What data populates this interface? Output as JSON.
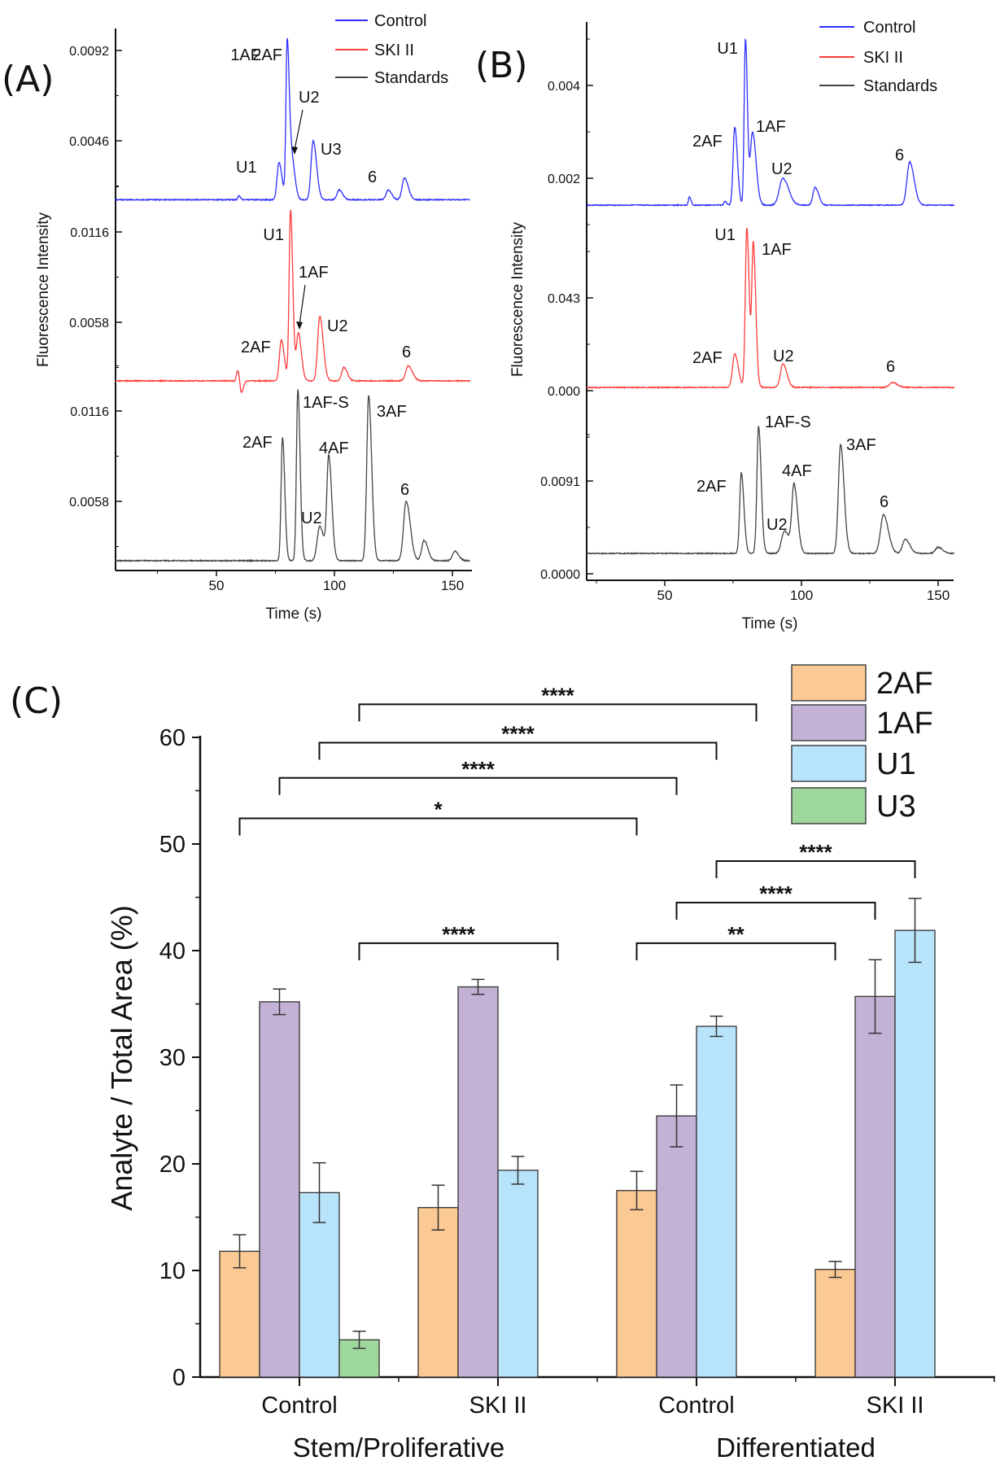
{
  "chart_data": [
    {
      "type": "line",
      "panel_label": "(A)",
      "xlabel": "Time (s)",
      "ylabel": "Fluorescence Intensity",
      "xlim": [
        7,
        157.5
      ],
      "xticks": [
        50,
        100,
        150
      ],
      "legend": {
        "placement": "top-right",
        "entries": [
          "Control",
          "SKI II",
          "Standards"
        ]
      },
      "traces": [
        {
          "name": "Control",
          "color": "#2e2eff",
          "yticks": [
            "0.0046",
            "0.0092"
          ],
          "baseline": 0.0016,
          "peaks": [
            {
              "t": 59.5,
              "h": 0.0018,
              "w": 0.4
            },
            {
              "t": 76.5,
              "h": 0.0035,
              "w": 0.8,
              "label": "2AF"
            },
            {
              "t": 80,
              "h": 0.0097,
              "w": 0.55,
              "label": "U1"
            },
            {
              "t": 82,
              "h": 0.0036,
              "w": 0.8,
              "label": "1AF",
              "arrow": true
            },
            {
              "t": 91,
              "h": 0.0046,
              "w": 0.9,
              "label": "U2"
            },
            {
              "t": 102,
              "h": 0.0021,
              "w": 0.9
            },
            {
              "t": 122.8,
              "h": 0.0021,
              "w": 0.9,
              "label": "U3"
            },
            {
              "t": 129.7,
              "h": 0.0027,
              "w": 1.0,
              "label": "6"
            }
          ]
        },
        {
          "name": "SKI II",
          "color": "#ff3b3b",
          "yticks": [
            "0.0058",
            "0.0116"
          ],
          "baseline": 0.00204,
          "peaks": [
            {
              "t": 59,
              "h": 0.0027,
              "w": 0.5
            },
            {
              "t": 60.5,
              "h": 0.0012,
              "w": 0.5
            },
            {
              "t": 77.5,
              "h": 0.00465,
              "w": 0.8,
              "label": "2AF"
            },
            {
              "t": 81.4,
              "h": 0.013,
              "w": 0.6,
              "label": "U1"
            },
            {
              "t": 84.7,
              "h": 0.0051,
              "w": 0.8,
              "label": "1AF",
              "arrow": true
            },
            {
              "t": 93.8,
              "h": 0.0062,
              "w": 0.9,
              "label": "U2"
            },
            {
              "t": 104,
              "h": 0.0029,
              "w": 0.9
            },
            {
              "t": 131.3,
              "h": 0.003,
              "w": 1.1,
              "label": "6"
            }
          ]
        },
        {
          "name": "Standards",
          "color": "#444444",
          "yticks": [
            "0.0058",
            "0.0116"
          ],
          "baseline": 0.00199,
          "peaks": [
            {
              "t": 78,
              "h": 0.0099,
              "w": 0.6,
              "label": "2AF"
            },
            {
              "t": 84.5,
              "h": 0.013,
              "w": 0.6,
              "label": "1AF-S"
            },
            {
              "t": 93.8,
              "h": 0.0042,
              "w": 1.1,
              "label": "U2"
            },
            {
              "t": 97.6,
              "h": 0.0086,
              "w": 0.8,
              "label": "4AF"
            },
            {
              "t": 114.5,
              "h": 0.0126,
              "w": 0.8,
              "label": "3AF"
            },
            {
              "t": 130.4,
              "h": 0.0058,
              "w": 1.1,
              "label": "6"
            },
            {
              "t": 138,
              "h": 0.0033,
              "w": 1.0
            },
            {
              "t": 151,
              "h": 0.0026,
              "w": 1.0
            }
          ]
        }
      ]
    },
    {
      "type": "line",
      "panel_label": "(B)",
      "xlabel": "Time (s)",
      "ylabel": "Fluorescence Intensity",
      "xlim": [
        21.4,
        156
      ],
      "xticks": [
        50,
        100,
        150
      ],
      "legend": {
        "placement": "top-right",
        "entries": [
          "Control",
          "SKI II",
          "Standards"
        ]
      },
      "traces": [
        {
          "name": "Control",
          "color": "#2e2eff",
          "yticks": [
            "0.002",
            "0.004"
          ],
          "baseline": 0.00142,
          "peaks": [
            {
              "t": 59,
              "h": 0.0016,
              "w": 0.35
            },
            {
              "t": 72,
              "h": 0.0015,
              "w": 0.4
            },
            {
              "t": 75.6,
              "h": 0.0031,
              "w": 0.6,
              "label": "2AF"
            },
            {
              "t": 79.5,
              "h": 0.005,
              "w": 0.45,
              "label": "U1"
            },
            {
              "t": 82.1,
              "h": 0.003,
              "w": 0.8,
              "label": "1AF"
            },
            {
              "t": 93.2,
              "h": 0.002,
              "w": 1.3,
              "label": "U2"
            },
            {
              "t": 105,
              "h": 0.0018,
              "w": 0.8
            },
            {
              "t": 139.6,
              "h": 0.00235,
              "w": 1.0,
              "label": "6"
            }
          ]
        },
        {
          "name": "SKI II",
          "color": "#ff3b3b",
          "yticks": [
            "0.000",
            "0.043"
          ],
          "baseline": 0.0015,
          "peaks": [
            {
              "t": 75.6,
              "h": 0.017,
              "w": 0.8,
              "label": "2AF"
            },
            {
              "t": 80,
              "h": 0.0754,
              "w": 0.55,
              "label": "U1"
            },
            {
              "t": 82.4,
              "h": 0.0675,
              "w": 0.55,
              "label": "1AF"
            },
            {
              "t": 93.2,
              "h": 0.0125,
              "w": 0.9,
              "label": "U2"
            },
            {
              "t": 133.3,
              "h": 0.0038,
              "w": 1.1,
              "label": "6"
            }
          ]
        },
        {
          "name": "Standards",
          "color": "#444444",
          "yticks": [
            "0.0000",
            "0.0091"
          ],
          "baseline": 0.002,
          "peaks": [
            {
              "t": 78,
              "h": 0.0099,
              "w": 0.6,
              "label": "2AF"
            },
            {
              "t": 84.3,
              "h": 0.0145,
              "w": 0.6,
              "label": "1AF-S"
            },
            {
              "t": 93.8,
              "h": 0.0042,
              "w": 1.1,
              "label": "U2"
            },
            {
              "t": 97.3,
              "h": 0.0086,
              "w": 0.8,
              "label": "4AF"
            },
            {
              "t": 114.3,
              "h": 0.0127,
              "w": 0.8,
              "label": "3AF"
            },
            {
              "t": 130,
              "h": 0.0058,
              "w": 1.1,
              "label": "6"
            },
            {
              "t": 138,
              "h": 0.0034,
              "w": 1.0
            },
            {
              "t": 150,
              "h": 0.0026,
              "w": 1.0
            }
          ]
        }
      ]
    },
    {
      "type": "bar",
      "panel_label": "(C)",
      "ylabel": "Analyte / Total Area (%)",
      "ylim": [
        0,
        60
      ],
      "yticks": [
        0,
        10,
        20,
        30,
        40,
        50,
        60
      ],
      "groups": [
        {
          "label": "Stem/Proliferative",
          "conditions": [
            "Control",
            "SKI II"
          ]
        },
        {
          "label": "Differentiated",
          "conditions": [
            "Control",
            "SKI II"
          ]
        }
      ],
      "legend": {
        "placement": "top-right"
      },
      "series": [
        {
          "name": "2AF",
          "color": "#fbc994",
          "values": [
            11.8,
            15.9,
            17.5,
            10.1
          ],
          "errors": [
            1.55,
            2.1,
            1.8,
            0.75
          ]
        },
        {
          "name": "1AF",
          "color": "#c3b1d6",
          "values": [
            35.2,
            36.6,
            24.5,
            35.7
          ],
          "errors": [
            1.2,
            0.7,
            2.9,
            3.45
          ]
        },
        {
          "name": "U1",
          "color": "#b8e4fb",
          "values": [
            17.3,
            19.4,
            32.9,
            41.9
          ],
          "errors": [
            2.8,
            1.3,
            0.95,
            3.0
          ]
        },
        {
          "name": "U3",
          "color": "#9fd89d",
          "values": [
            3.5,
            null,
            null,
            null
          ],
          "errors": [
            0.8,
            null,
            null,
            null
          ]
        }
      ],
      "significance": [
        {
          "from": [
            0,
            3
          ],
          "to": [
            2,
            3
          ],
          "y": 63.1,
          "label": "****"
        },
        {
          "from": [
            0,
            2
          ],
          "to": [
            2,
            2
          ],
          "y": 59.5,
          "label": "****"
        },
        {
          "from": [
            0,
            1
          ],
          "to": [
            2,
            1
          ],
          "y": 56.2,
          "label": "****"
        },
        {
          "from": [
            0,
            0
          ],
          "to": [
            2,
            0
          ],
          "y": 52.4,
          "label": "*"
        },
        {
          "from": [
            0,
            3
          ],
          "to": [
            1,
            3
          ],
          "y": 40.7,
          "label": "****"
        },
        {
          "from": [
            2,
            2
          ],
          "to": [
            3,
            2
          ],
          "y": 48.4,
          "label": "****"
        },
        {
          "from": [
            2,
            1
          ],
          "to": [
            3,
            1
          ],
          "y": 44.5,
          "label": "****"
        },
        {
          "from": [
            2,
            0
          ],
          "to": [
            3,
            0
          ],
          "y": 40.7,
          "label": "**"
        }
      ]
    }
  ]
}
